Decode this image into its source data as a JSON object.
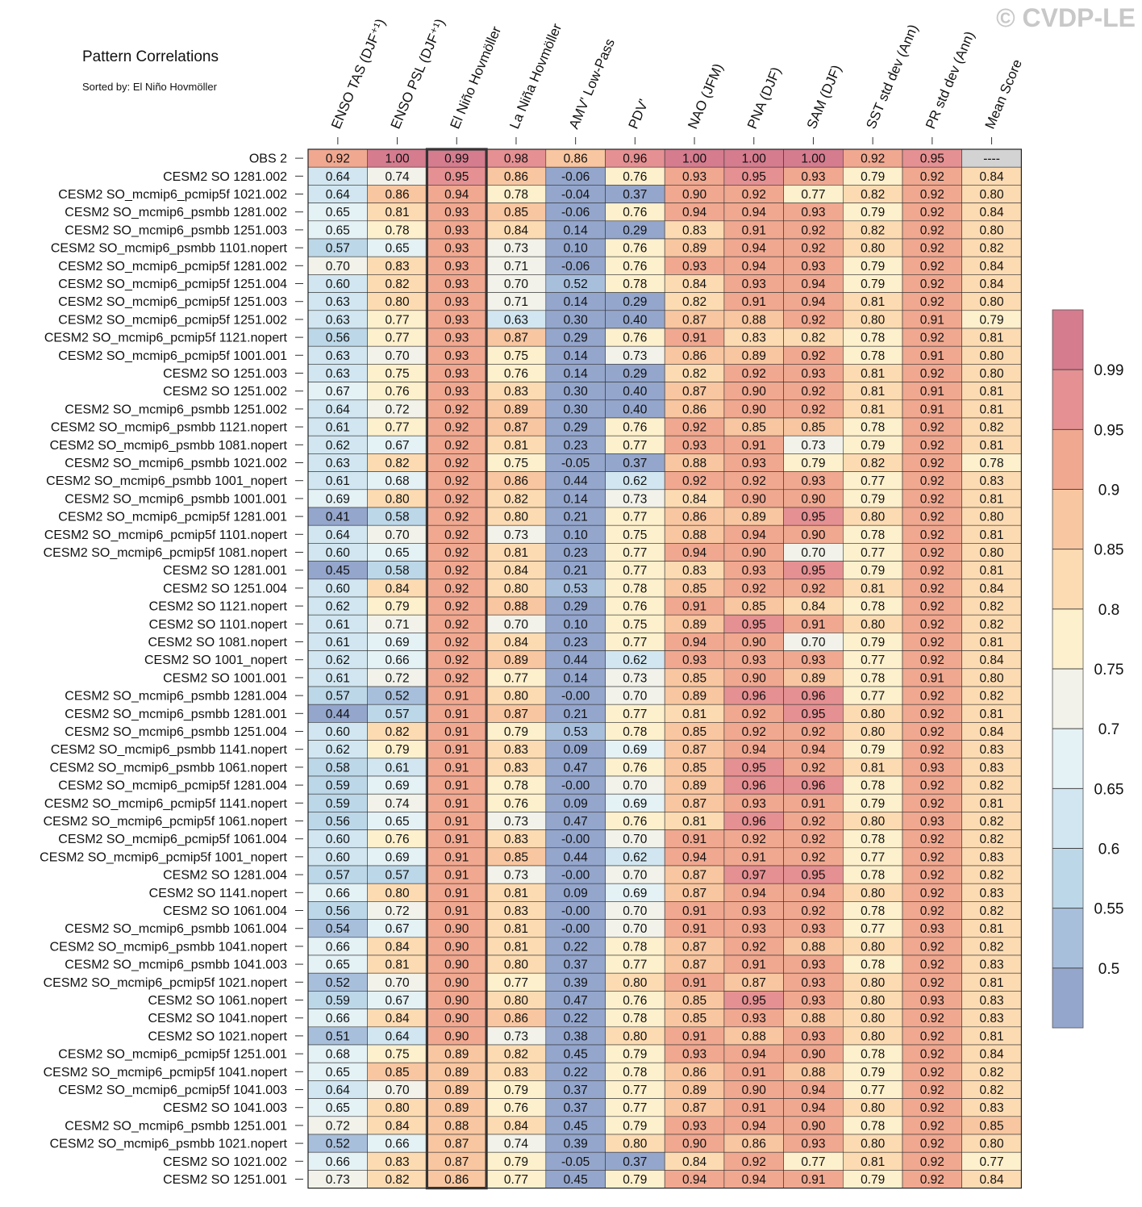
{
  "watermark": "© CVDP-LE",
  "chart_data": {
    "type": "heatmap",
    "title": "Pattern Correlations",
    "subtitle": "Sorted by: El Niño Hovmöller",
    "columns": [
      "ENSO TAS (DJF⁺¹)",
      "ENSO PSL (DJF⁺¹)",
      "El Niño Hovmöller",
      "La Niña Hovmöller",
      "AMV' Low-Pass",
      "PDV'",
      "NAO (JFM)",
      "PNA (DJF)",
      "SAM (DJF)",
      "SST std dev (Ann)",
      "PR std dev (Ann)",
      "Mean Score"
    ],
    "highlighted_column": "El Niño Hovmöller",
    "rows": [
      {
        "name": "OBS 2",
        "values": [
          "0.92",
          "1.00",
          "0.99",
          "0.98",
          "0.86",
          "0.96",
          "1.00",
          "1.00",
          "1.00",
          "0.92",
          "0.95",
          "----"
        ]
      },
      {
        "name": "CESM2 SO 1281.002",
        "values": [
          "0.64",
          "0.74",
          "0.95",
          "0.86",
          "-0.06",
          "0.76",
          "0.93",
          "0.95",
          "0.93",
          "0.79",
          "0.92",
          "0.84"
        ]
      },
      {
        "name": "CESM2 SO_mcmip6_pcmip5f 1021.002",
        "values": [
          "0.64",
          "0.86",
          "0.94",
          "0.78",
          "-0.04",
          "0.37",
          "0.90",
          "0.92",
          "0.77",
          "0.82",
          "0.92",
          "0.80"
        ]
      },
      {
        "name": "CESM2 SO_mcmip6_psmbb 1281.002",
        "values": [
          "0.65",
          "0.81",
          "0.93",
          "0.85",
          "-0.06",
          "0.76",
          "0.94",
          "0.94",
          "0.93",
          "0.79",
          "0.92",
          "0.84"
        ]
      },
      {
        "name": "CESM2 SO_mcmip6_psmbb 1251.003",
        "values": [
          "0.65",
          "0.78",
          "0.93",
          "0.84",
          "0.14",
          "0.29",
          "0.83",
          "0.91",
          "0.92",
          "0.82",
          "0.92",
          "0.80"
        ]
      },
      {
        "name": "CESM2 SO_mcmip6_psmbb 1101.nopert",
        "values": [
          "0.57",
          "0.65",
          "0.93",
          "0.73",
          "0.10",
          "0.76",
          "0.89",
          "0.94",
          "0.92",
          "0.80",
          "0.92",
          "0.82"
        ]
      },
      {
        "name": "CESM2 SO_mcmip6_pcmip5f 1281.002",
        "values": [
          "0.70",
          "0.83",
          "0.93",
          "0.71",
          "-0.06",
          "0.76",
          "0.93",
          "0.94",
          "0.93",
          "0.79",
          "0.92",
          "0.84"
        ]
      },
      {
        "name": "CESM2 SO_mcmip6_pcmip5f 1251.004",
        "values": [
          "0.60",
          "0.82",
          "0.93",
          "0.70",
          "0.52",
          "0.78",
          "0.84",
          "0.93",
          "0.94",
          "0.79",
          "0.92",
          "0.84"
        ]
      },
      {
        "name": "CESM2 SO_mcmip6_pcmip5f 1251.003",
        "values": [
          "0.63",
          "0.80",
          "0.93",
          "0.71",
          "0.14",
          "0.29",
          "0.82",
          "0.91",
          "0.94",
          "0.81",
          "0.92",
          "0.80"
        ]
      },
      {
        "name": "CESM2 SO_mcmip6_pcmip5f 1251.002",
        "values": [
          "0.63",
          "0.77",
          "0.93",
          "0.63",
          "0.30",
          "0.40",
          "0.87",
          "0.88",
          "0.92",
          "0.80",
          "0.91",
          "0.79"
        ]
      },
      {
        "name": "CESM2 SO_mcmip6_pcmip5f 1121.nopert",
        "values": [
          "0.56",
          "0.77",
          "0.93",
          "0.87",
          "0.29",
          "0.76",
          "0.91",
          "0.83",
          "0.82",
          "0.78",
          "0.92",
          "0.81"
        ]
      },
      {
        "name": "CESM2 SO_mcmip6_pcmip5f 1001.001",
        "values": [
          "0.63",
          "0.70",
          "0.93",
          "0.75",
          "0.14",
          "0.73",
          "0.86",
          "0.89",
          "0.92",
          "0.78",
          "0.91",
          "0.80"
        ]
      },
      {
        "name": "CESM2 SO 1251.003",
        "values": [
          "0.63",
          "0.75",
          "0.93",
          "0.76",
          "0.14",
          "0.29",
          "0.82",
          "0.92",
          "0.93",
          "0.81",
          "0.92",
          "0.80"
        ]
      },
      {
        "name": "CESM2 SO 1251.002",
        "values": [
          "0.67",
          "0.76",
          "0.93",
          "0.83",
          "0.30",
          "0.40",
          "0.87",
          "0.90",
          "0.92",
          "0.81",
          "0.91",
          "0.81"
        ]
      },
      {
        "name": "CESM2 SO_mcmip6_psmbb 1251.002",
        "values": [
          "0.64",
          "0.72",
          "0.92",
          "0.89",
          "0.30",
          "0.40",
          "0.86",
          "0.90",
          "0.92",
          "0.81",
          "0.91",
          "0.81"
        ]
      },
      {
        "name": "CESM2 SO_mcmip6_psmbb 1121.nopert",
        "values": [
          "0.61",
          "0.77",
          "0.92",
          "0.87",
          "0.29",
          "0.76",
          "0.92",
          "0.85",
          "0.85",
          "0.78",
          "0.92",
          "0.82"
        ]
      },
      {
        "name": "CESM2 SO_mcmip6_psmbb 1081.nopert",
        "values": [
          "0.62",
          "0.67",
          "0.92",
          "0.81",
          "0.23",
          "0.77",
          "0.93",
          "0.91",
          "0.73",
          "0.79",
          "0.92",
          "0.81"
        ]
      },
      {
        "name": "CESM2 SO_mcmip6_psmbb 1021.002",
        "values": [
          "0.63",
          "0.82",
          "0.92",
          "0.75",
          "-0.05",
          "0.37",
          "0.88",
          "0.93",
          "0.79",
          "0.82",
          "0.92",
          "0.78"
        ]
      },
      {
        "name": "CESM2 SO_mcmip6_psmbb 1001_nopert",
        "values": [
          "0.61",
          "0.68",
          "0.92",
          "0.86",
          "0.44",
          "0.62",
          "0.92",
          "0.92",
          "0.93",
          "0.77",
          "0.92",
          "0.83"
        ]
      },
      {
        "name": "CESM2 SO_mcmip6_psmbb 1001.001",
        "values": [
          "0.69",
          "0.80",
          "0.92",
          "0.82",
          "0.14",
          "0.73",
          "0.84",
          "0.90",
          "0.90",
          "0.79",
          "0.92",
          "0.81"
        ]
      },
      {
        "name": "CESM2 SO_mcmip6_pcmip5f 1281.001",
        "values": [
          "0.41",
          "0.58",
          "0.92",
          "0.80",
          "0.21",
          "0.77",
          "0.86",
          "0.89",
          "0.95",
          "0.80",
          "0.92",
          "0.80"
        ]
      },
      {
        "name": "CESM2 SO_mcmip6_pcmip5f 1101.nopert",
        "values": [
          "0.64",
          "0.70",
          "0.92",
          "0.73",
          "0.10",
          "0.75",
          "0.88",
          "0.94",
          "0.90",
          "0.78",
          "0.92",
          "0.81"
        ]
      },
      {
        "name": "CESM2 SO_mcmip6_pcmip5f 1081.nopert",
        "values": [
          "0.60",
          "0.65",
          "0.92",
          "0.81",
          "0.23",
          "0.77",
          "0.94",
          "0.90",
          "0.70",
          "0.77",
          "0.92",
          "0.80"
        ]
      },
      {
        "name": "CESM2 SO 1281.001",
        "values": [
          "0.45",
          "0.58",
          "0.92",
          "0.84",
          "0.21",
          "0.77",
          "0.83",
          "0.93",
          "0.95",
          "0.79",
          "0.92",
          "0.81"
        ]
      },
      {
        "name": "CESM2 SO 1251.004",
        "values": [
          "0.60",
          "0.84",
          "0.92",
          "0.80",
          "0.53",
          "0.78",
          "0.85",
          "0.92",
          "0.92",
          "0.81",
          "0.92",
          "0.84"
        ]
      },
      {
        "name": "CESM2 SO 1121.nopert",
        "values": [
          "0.62",
          "0.79",
          "0.92",
          "0.88",
          "0.29",
          "0.76",
          "0.91",
          "0.85",
          "0.84",
          "0.78",
          "0.92",
          "0.82"
        ]
      },
      {
        "name": "CESM2 SO 1101.nopert",
        "values": [
          "0.61",
          "0.71",
          "0.92",
          "0.70",
          "0.10",
          "0.75",
          "0.89",
          "0.95",
          "0.91",
          "0.80",
          "0.92",
          "0.82"
        ]
      },
      {
        "name": "CESM2 SO 1081.nopert",
        "values": [
          "0.61",
          "0.69",
          "0.92",
          "0.84",
          "0.23",
          "0.77",
          "0.94",
          "0.90",
          "0.70",
          "0.79",
          "0.92",
          "0.81"
        ]
      },
      {
        "name": "CESM2 SO 1001_nopert",
        "values": [
          "0.62",
          "0.66",
          "0.92",
          "0.89",
          "0.44",
          "0.62",
          "0.93",
          "0.93",
          "0.93",
          "0.77",
          "0.92",
          "0.84"
        ]
      },
      {
        "name": "CESM2 SO 1001.001",
        "values": [
          "0.61",
          "0.72",
          "0.92",
          "0.77",
          "0.14",
          "0.73",
          "0.85",
          "0.90",
          "0.89",
          "0.78",
          "0.91",
          "0.80"
        ]
      },
      {
        "name": "CESM2 SO_mcmip6_psmbb 1281.004",
        "values": [
          "0.57",
          "0.52",
          "0.91",
          "0.80",
          "-0.00",
          "0.70",
          "0.89",
          "0.96",
          "0.96",
          "0.77",
          "0.92",
          "0.82"
        ]
      },
      {
        "name": "CESM2 SO_mcmip6_psmbb 1281.001",
        "values": [
          "0.44",
          "0.57",
          "0.91",
          "0.87",
          "0.21",
          "0.77",
          "0.81",
          "0.92",
          "0.95",
          "0.80",
          "0.92",
          "0.81"
        ]
      },
      {
        "name": "CESM2 SO_mcmip6_psmbb 1251.004",
        "values": [
          "0.60",
          "0.82",
          "0.91",
          "0.79",
          "0.53",
          "0.78",
          "0.85",
          "0.92",
          "0.92",
          "0.80",
          "0.92",
          "0.84"
        ]
      },
      {
        "name": "CESM2 SO_mcmip6_psmbb 1141.nopert",
        "values": [
          "0.62",
          "0.79",
          "0.91",
          "0.83",
          "0.09",
          "0.69",
          "0.87",
          "0.94",
          "0.94",
          "0.79",
          "0.92",
          "0.83"
        ]
      },
      {
        "name": "CESM2 SO_mcmip6_psmbb 1061.nopert",
        "values": [
          "0.58",
          "0.61",
          "0.91",
          "0.83",
          "0.47",
          "0.76",
          "0.85",
          "0.95",
          "0.92",
          "0.81",
          "0.93",
          "0.83"
        ]
      },
      {
        "name": "CESM2 SO_mcmip6_pcmip5f 1281.004",
        "values": [
          "0.59",
          "0.69",
          "0.91",
          "0.78",
          "-0.00",
          "0.70",
          "0.89",
          "0.96",
          "0.96",
          "0.78",
          "0.92",
          "0.82"
        ]
      },
      {
        "name": "CESM2 SO_mcmip6_pcmip5f 1141.nopert",
        "values": [
          "0.59",
          "0.74",
          "0.91",
          "0.76",
          "0.09",
          "0.69",
          "0.87",
          "0.93",
          "0.91",
          "0.79",
          "0.92",
          "0.81"
        ]
      },
      {
        "name": "CESM2 SO_mcmip6_pcmip5f 1061.nopert",
        "values": [
          "0.56",
          "0.65",
          "0.91",
          "0.73",
          "0.47",
          "0.76",
          "0.81",
          "0.96",
          "0.92",
          "0.80",
          "0.93",
          "0.82"
        ]
      },
      {
        "name": "CESM2 SO_mcmip6_pcmip5f 1061.004",
        "values": [
          "0.60",
          "0.76",
          "0.91",
          "0.83",
          "-0.00",
          "0.70",
          "0.91",
          "0.92",
          "0.92",
          "0.78",
          "0.92",
          "0.82"
        ]
      },
      {
        "name": "CESM2 SO_mcmip6_pcmip5f 1001_nopert",
        "values": [
          "0.60",
          "0.69",
          "0.91",
          "0.85",
          "0.44",
          "0.62",
          "0.94",
          "0.91",
          "0.92",
          "0.77",
          "0.92",
          "0.83"
        ]
      },
      {
        "name": "CESM2 SO 1281.004",
        "values": [
          "0.57",
          "0.57",
          "0.91",
          "0.73",
          "-0.00",
          "0.70",
          "0.87",
          "0.97",
          "0.95",
          "0.78",
          "0.92",
          "0.82"
        ]
      },
      {
        "name": "CESM2 SO 1141.nopert",
        "values": [
          "0.66",
          "0.80",
          "0.91",
          "0.81",
          "0.09",
          "0.69",
          "0.87",
          "0.94",
          "0.94",
          "0.80",
          "0.92",
          "0.83"
        ]
      },
      {
        "name": "CESM2 SO 1061.004",
        "values": [
          "0.56",
          "0.72",
          "0.91",
          "0.83",
          "-0.00",
          "0.70",
          "0.91",
          "0.93",
          "0.92",
          "0.78",
          "0.92",
          "0.82"
        ]
      },
      {
        "name": "CESM2 SO_mcmip6_psmbb 1061.004",
        "values": [
          "0.54",
          "0.67",
          "0.90",
          "0.81",
          "-0.00",
          "0.70",
          "0.91",
          "0.93",
          "0.93",
          "0.77",
          "0.93",
          "0.81"
        ]
      },
      {
        "name": "CESM2 SO_mcmip6_psmbb 1041.nopert",
        "values": [
          "0.66",
          "0.84",
          "0.90",
          "0.81",
          "0.22",
          "0.78",
          "0.87",
          "0.92",
          "0.88",
          "0.80",
          "0.92",
          "0.82"
        ]
      },
      {
        "name": "CESM2 SO_mcmip6_psmbb 1041.003",
        "values": [
          "0.65",
          "0.81",
          "0.90",
          "0.80",
          "0.37",
          "0.77",
          "0.87",
          "0.91",
          "0.93",
          "0.78",
          "0.92",
          "0.83"
        ]
      },
      {
        "name": "CESM2 SO_mcmip6_pcmip5f 1021.nopert",
        "values": [
          "0.52",
          "0.70",
          "0.90",
          "0.77",
          "0.39",
          "0.80",
          "0.91",
          "0.87",
          "0.93",
          "0.80",
          "0.92",
          "0.81"
        ]
      },
      {
        "name": "CESM2 SO 1061.nopert",
        "values": [
          "0.59",
          "0.67",
          "0.90",
          "0.80",
          "0.47",
          "0.76",
          "0.85",
          "0.95",
          "0.93",
          "0.80",
          "0.93",
          "0.83"
        ]
      },
      {
        "name": "CESM2 SO 1041.nopert",
        "values": [
          "0.66",
          "0.84",
          "0.90",
          "0.86",
          "0.22",
          "0.78",
          "0.85",
          "0.93",
          "0.88",
          "0.80",
          "0.92",
          "0.83"
        ]
      },
      {
        "name": "CESM2 SO 1021.nopert",
        "values": [
          "0.51",
          "0.64",
          "0.90",
          "0.73",
          "0.38",
          "0.80",
          "0.91",
          "0.88",
          "0.93",
          "0.80",
          "0.92",
          "0.81"
        ]
      },
      {
        "name": "CESM2 SO_mcmip6_pcmip5f 1251.001",
        "values": [
          "0.68",
          "0.75",
          "0.89",
          "0.82",
          "0.45",
          "0.79",
          "0.93",
          "0.94",
          "0.90",
          "0.78",
          "0.92",
          "0.84"
        ]
      },
      {
        "name": "CESM2 SO_mcmip6_pcmip5f 1041.nopert",
        "values": [
          "0.65",
          "0.85",
          "0.89",
          "0.83",
          "0.22",
          "0.78",
          "0.86",
          "0.91",
          "0.88",
          "0.79",
          "0.92",
          "0.82"
        ]
      },
      {
        "name": "CESM2 SO_mcmip6_pcmip5f 1041.003",
        "values": [
          "0.64",
          "0.70",
          "0.89",
          "0.79",
          "0.37",
          "0.77",
          "0.89",
          "0.90",
          "0.94",
          "0.77",
          "0.92",
          "0.82"
        ]
      },
      {
        "name": "CESM2 SO 1041.003",
        "values": [
          "0.65",
          "0.80",
          "0.89",
          "0.76",
          "0.37",
          "0.77",
          "0.87",
          "0.91",
          "0.94",
          "0.80",
          "0.92",
          "0.83"
        ]
      },
      {
        "name": "CESM2 SO_mcmip6_psmbb 1251.001",
        "values": [
          "0.72",
          "0.84",
          "0.88",
          "0.84",
          "0.45",
          "0.79",
          "0.93",
          "0.94",
          "0.90",
          "0.78",
          "0.92",
          "0.85"
        ]
      },
      {
        "name": "CESM2 SO_mcmip6_psmbb 1021.nopert",
        "values": [
          "0.52",
          "0.66",
          "0.87",
          "0.74",
          "0.39",
          "0.80",
          "0.90",
          "0.86",
          "0.93",
          "0.80",
          "0.92",
          "0.80"
        ]
      },
      {
        "name": "CESM2 SO 1021.002",
        "values": [
          "0.66",
          "0.83",
          "0.87",
          "0.79",
          "-0.05",
          "0.37",
          "0.84",
          "0.92",
          "0.77",
          "0.81",
          "0.92",
          "0.77"
        ]
      },
      {
        "name": "CESM2 SO 1251.001",
        "values": [
          "0.73",
          "0.82",
          "0.86",
          "0.77",
          "0.45",
          "0.79",
          "0.94",
          "0.94",
          "0.91",
          "0.79",
          "0.92",
          "0.84"
        ]
      }
    ],
    "colorbar": {
      "levels": [
        0.5,
        0.55,
        0.6,
        0.65,
        0.7,
        0.75,
        0.8,
        0.85,
        0.9,
        0.95,
        0.99
      ],
      "tick_labels": [
        "0.5",
        "0.55",
        "0.6",
        "0.65",
        "0.7",
        "0.75",
        "0.8",
        "0.85",
        "0.9",
        "0.95",
        "0.99"
      ],
      "colors": [
        "#94a6cc",
        "#a8bfdc",
        "#bcd7e8",
        "#d1e6f0",
        "#e4f1f5",
        "#f2f2ea",
        "#fdf0cc",
        "#fcdbb2",
        "#f8c6a0",
        "#f0a890",
        "#e59092",
        "#d57c8f"
      ],
      "missing_color": "#d3d3d3"
    }
  }
}
